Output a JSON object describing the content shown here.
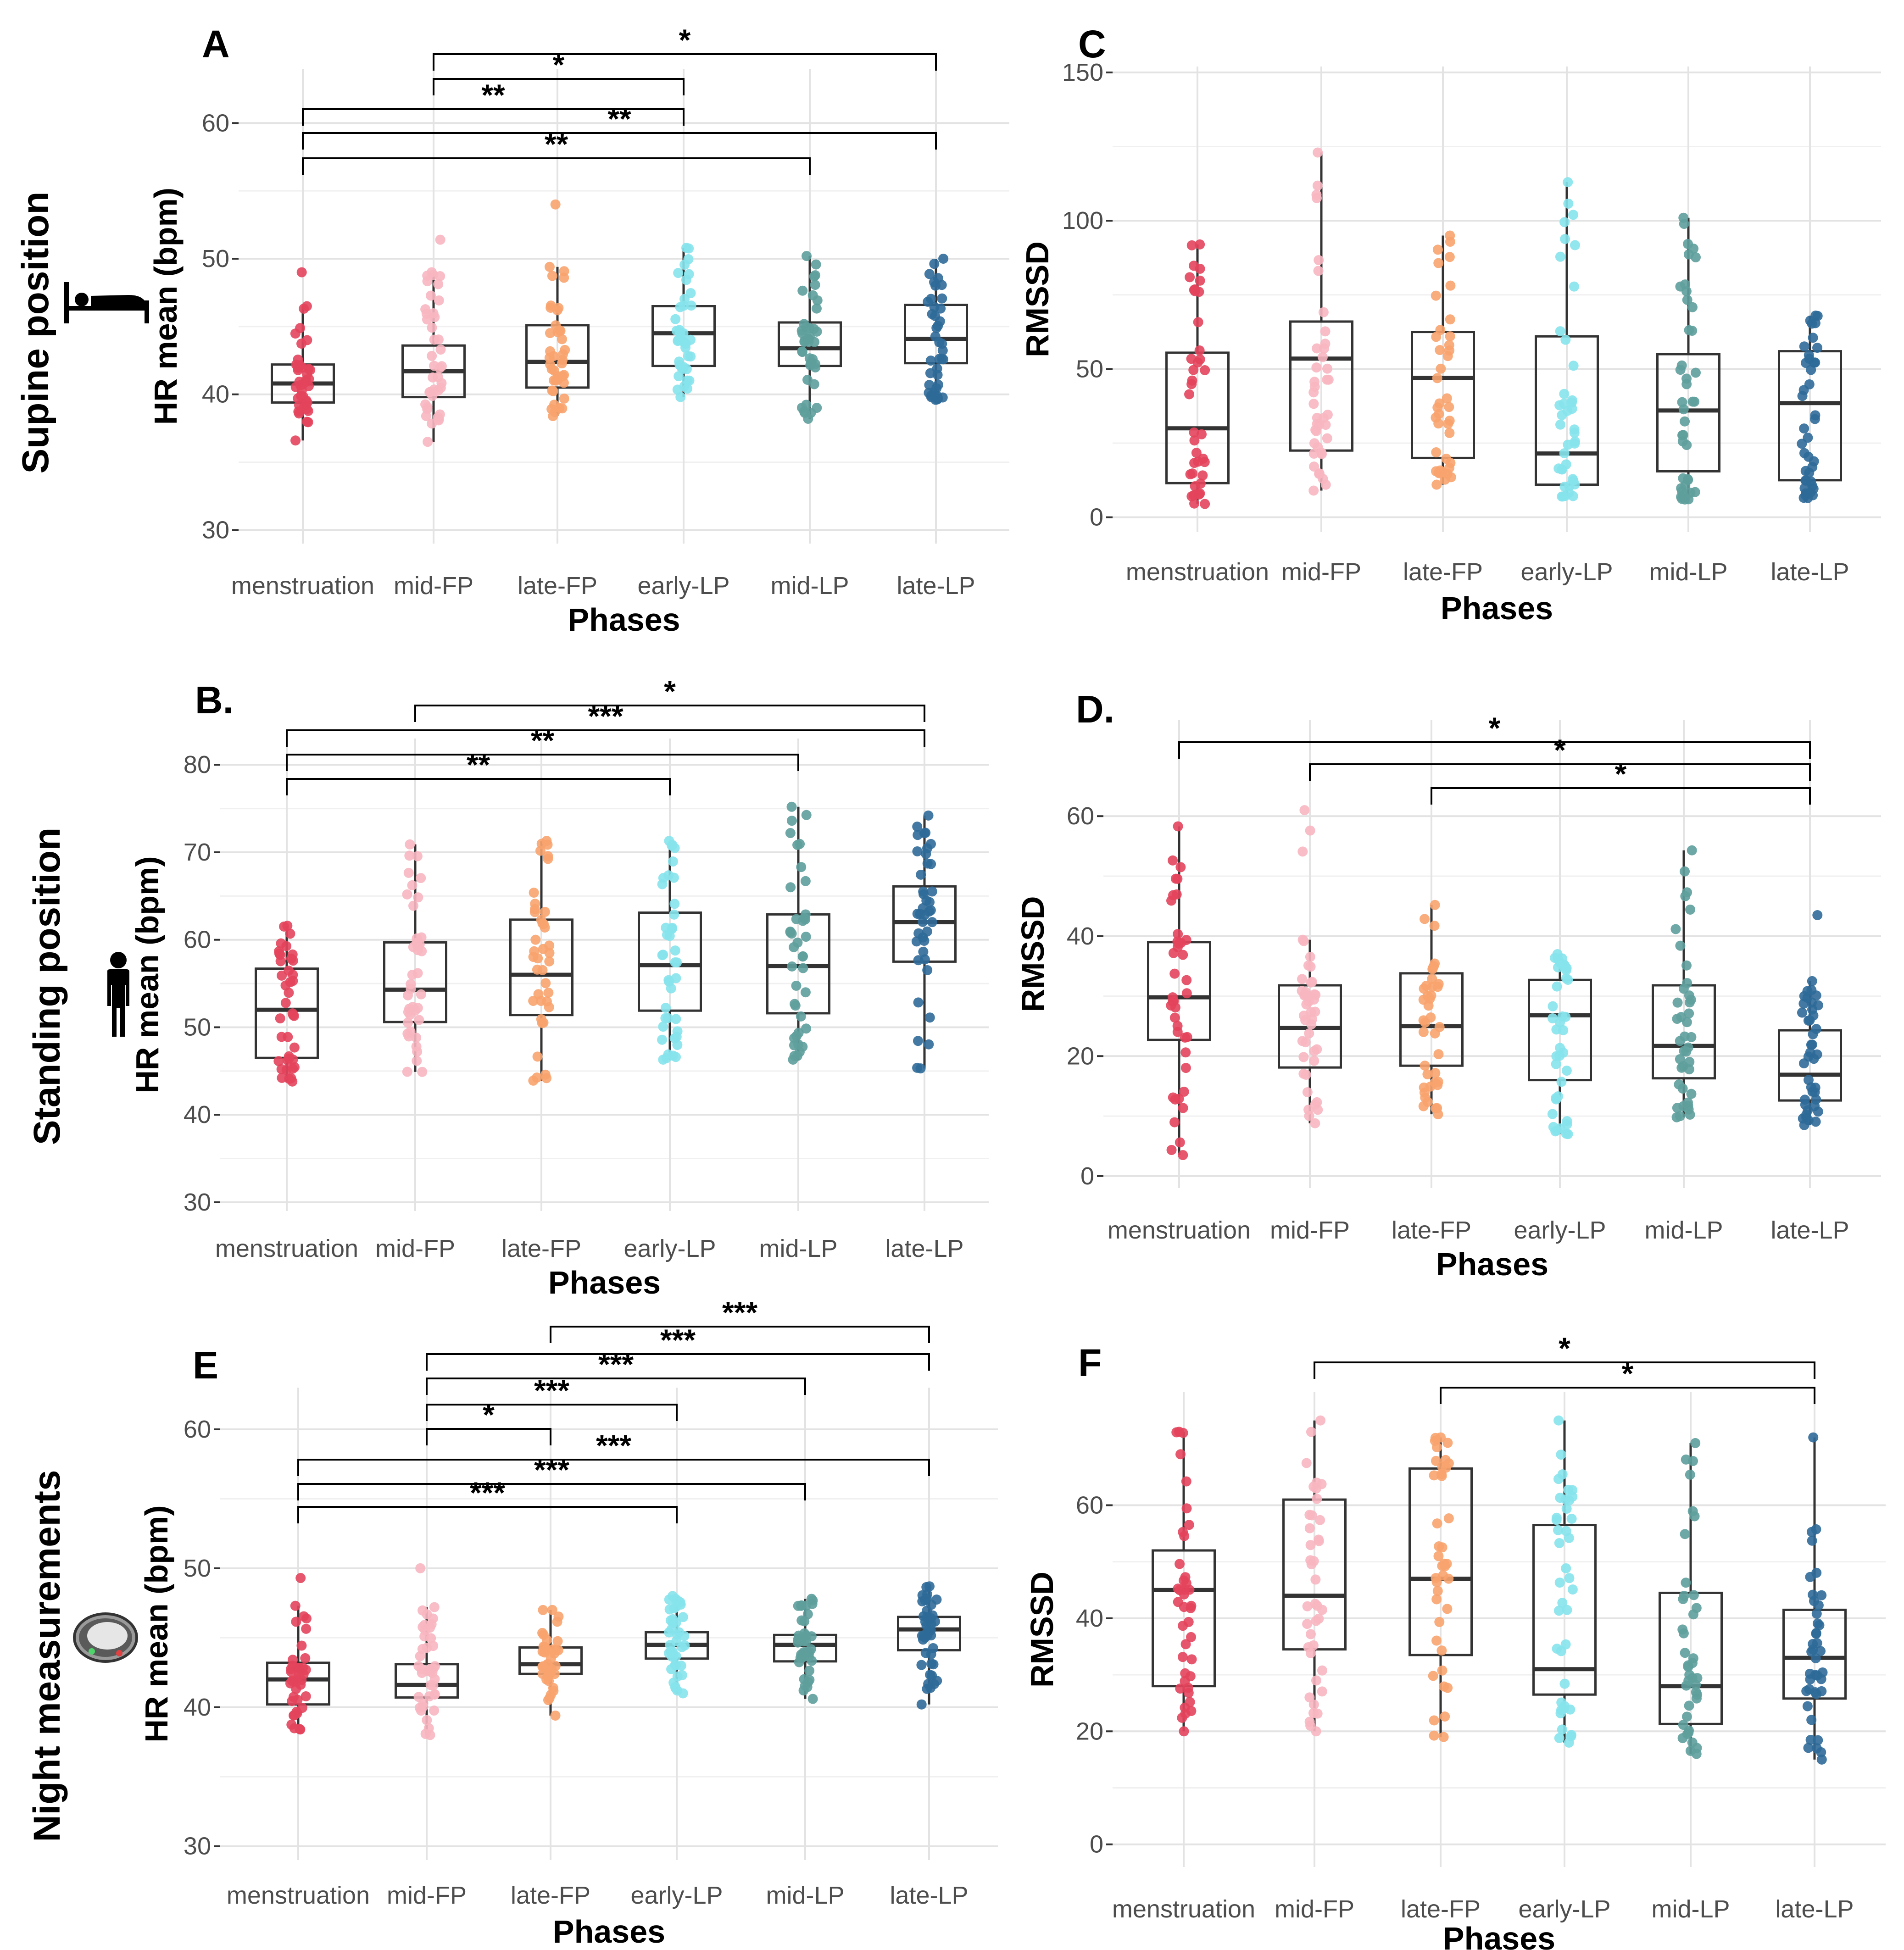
{
  "figure": {
    "row_titles": [
      "Supine position",
      "Standing position",
      "Night measurements"
    ],
    "phases": [
      "menstruation",
      "mid-FP",
      "late-FP",
      "early-LP",
      "mid-LP",
      "late-LP"
    ],
    "phase_colors": [
      "#e3445c",
      "#f7b6c0",
      "#f8a36e",
      "#86e3ec",
      "#5e9e9c",
      "#2f6a98"
    ]
  },
  "chart_data": [
    {
      "id": "A",
      "label": "A",
      "type": "box",
      "row": 0,
      "col": 0,
      "title": "",
      "xlabel": "Phases",
      "ylabel": "HR mean (bpm)",
      "ylim": [
        29,
        64
      ],
      "yticks": [
        30,
        40,
        50,
        60
      ],
      "categories": [
        "menstruation",
        "mid-FP",
        "late-FP",
        "early-LP",
        "mid-LP",
        "late-LP"
      ],
      "boxes": [
        {
          "q1": 39.4,
          "median": 40.8,
          "q3": 42.2,
          "min": 36.6,
          "max": 46.5
        },
        {
          "q1": 39.8,
          "median": 41.7,
          "q3": 43.6,
          "min": 36.5,
          "max": 49.0
        },
        {
          "q1": 40.5,
          "median": 42.4,
          "q3": 45.1,
          "min": 38.4,
          "max": 49.4
        },
        {
          "q1": 42.1,
          "median": 44.5,
          "q3": 46.5,
          "min": 39.8,
          "max": 50.8
        },
        {
          "q1": 42.1,
          "median": 43.4,
          "q3": 45.3,
          "min": 38.2,
          "max": 50.2
        },
        {
          "q1": 42.3,
          "median": 44.1,
          "q3": 46.6,
          "min": 39.6,
          "max": 50.0
        }
      ],
      "outliers": [
        [
          49.0
        ],
        [
          51.4
        ],
        [
          54.0
        ],
        [],
        [],
        []
      ],
      "significance": [
        {
          "from": 1,
          "to": 5,
          "label": "*"
        },
        {
          "from": 1,
          "to": 3,
          "label": "*"
        },
        {
          "from": 0,
          "to": 3,
          "label": "**"
        },
        {
          "from": 0,
          "to": 5,
          "label": "**"
        },
        {
          "from": 0,
          "to": 4,
          "label": "**"
        }
      ]
    },
    {
      "id": "C",
      "label": "C",
      "type": "box",
      "row": 0,
      "col": 1,
      "title": "",
      "xlabel": "Phases",
      "ylabel": "RMSSD",
      "ylim": [
        -5,
        152
      ],
      "yticks": [
        0,
        50,
        100,
        150
      ],
      "categories": [
        "menstruation",
        "mid-FP",
        "late-FP",
        "early-LP",
        "mid-LP",
        "late-LP"
      ],
      "boxes": [
        {
          "q1": 11.5,
          "median": 30.0,
          "q3": 55.5,
          "min": 4.5,
          "max": 92.0
        },
        {
          "q1": 22.5,
          "median": 53.5,
          "q3": 66.0,
          "min": 9.0,
          "max": 123.0
        },
        {
          "q1": 20.0,
          "median": 47.0,
          "q3": 62.5,
          "min": 11.0,
          "max": 95.0
        },
        {
          "q1": 11.0,
          "median": 21.5,
          "q3": 61.0,
          "min": 7.0,
          "max": 113.0
        },
        {
          "q1": 15.5,
          "median": 36.0,
          "q3": 55.0,
          "min": 6.0,
          "max": 101.0
        },
        {
          "q1": 12.5,
          "median": 38.5,
          "q3": 56.0,
          "min": 6.5,
          "max": 68.0
        }
      ],
      "outliers": [
        [],
        [],
        [],
        [],
        [],
        []
      ],
      "significance": []
    },
    {
      "id": "B",
      "label": "B.",
      "type": "box",
      "row": 1,
      "col": 0,
      "title": "",
      "xlabel": "Phases",
      "ylabel": "HR mean (bpm)",
      "ylim": [
        29,
        83
      ],
      "yticks": [
        30,
        40,
        50,
        60,
        70,
        80
      ],
      "categories": [
        "menstruation",
        "mid-FP",
        "late-FP",
        "early-LP",
        "mid-LP",
        "late-LP"
      ],
      "boxes": [
        {
          "q1": 46.5,
          "median": 52.0,
          "q3": 56.7,
          "min": 43.8,
          "max": 61.6
        },
        {
          "q1": 50.6,
          "median": 54.3,
          "q3": 59.7,
          "min": 44.9,
          "max": 70.9
        },
        {
          "q1": 51.4,
          "median": 56.0,
          "q3": 62.3,
          "min": 43.9,
          "max": 71.3
        },
        {
          "q1": 51.9,
          "median": 57.1,
          "q3": 63.1,
          "min": 46.3,
          "max": 71.3
        },
        {
          "q1": 51.6,
          "median": 57.0,
          "q3": 62.9,
          "min": 46.3,
          "max": 75.2
        },
        {
          "q1": 57.5,
          "median": 62.0,
          "q3": 66.1,
          "min": 45.3,
          "max": 74.2
        }
      ],
      "outliers": [
        [],
        [],
        [],
        [],
        [],
        []
      ],
      "significance": [
        {
          "from": 1,
          "to": 5,
          "label": "*"
        },
        {
          "from": 0,
          "to": 5,
          "label": "***"
        },
        {
          "from": 0,
          "to": 4,
          "label": "**"
        },
        {
          "from": 0,
          "to": 3,
          "label": "**"
        }
      ]
    },
    {
      "id": "D",
      "label": "D.",
      "type": "box",
      "row": 1,
      "col": 1,
      "title": "",
      "xlabel": "Phases",
      "ylabel": "RMSSD",
      "ylim": [
        -2,
        76
      ],
      "yticks": [
        0,
        20,
        40,
        60
      ],
      "categories": [
        "menstruation",
        "mid-FP",
        "late-FP",
        "early-LP",
        "mid-LP",
        "late-LP"
      ],
      "boxes": [
        {
          "q1": 22.7,
          "median": 29.8,
          "q3": 39.0,
          "min": 3.5,
          "max": 58.3
        },
        {
          "q1": 18.1,
          "median": 24.7,
          "q3": 31.8,
          "min": 8.8,
          "max": 39.4
        },
        {
          "q1": 18.4,
          "median": 25.0,
          "q3": 33.8,
          "min": 10.3,
          "max": 45.2
        },
        {
          "q1": 16.0,
          "median": 26.8,
          "q3": 32.7,
          "min": 7.0,
          "max": 37.0
        },
        {
          "q1": 16.3,
          "median": 21.7,
          "q3": 31.8,
          "min": 9.8,
          "max": 54.3
        },
        {
          "q1": 12.6,
          "median": 16.9,
          "q3": 24.3,
          "min": 8.5,
          "max": 32.5
        }
      ],
      "outliers": [
        [],
        [
          54.1,
          57.6,
          61.0
        ],
        [],
        [],
        [],
        [
          43.5
        ]
      ],
      "significance": [
        {
          "from": 0,
          "to": 5,
          "label": "*"
        },
        {
          "from": 1,
          "to": 5,
          "label": "*"
        },
        {
          "from": 2,
          "to": 5,
          "label": "*"
        }
      ]
    },
    {
      "id": "E",
      "label": "E",
      "type": "box",
      "row": 2,
      "col": 0,
      "title": "",
      "xlabel": "Phases",
      "ylabel": "HR mean (bpm)",
      "ylim": [
        29,
        63
      ],
      "yticks": [
        30,
        40,
        50,
        60
      ],
      "categories": [
        "menstruation",
        "mid-FP",
        "late-FP",
        "early-LP",
        "mid-LP",
        "late-LP"
      ],
      "boxes": [
        {
          "q1": 40.2,
          "median": 42.0,
          "q3": 43.2,
          "min": 38.4,
          "max": 47.3
        },
        {
          "q1": 40.7,
          "median": 41.6,
          "q3": 43.1,
          "min": 38.0,
          "max": 47.2
        },
        {
          "q1": 42.4,
          "median": 43.1,
          "q3": 44.3,
          "min": 39.4,
          "max": 47.0
        },
        {
          "q1": 43.5,
          "median": 44.5,
          "q3": 45.4,
          "min": 41.0,
          "max": 48.0
        },
        {
          "q1": 43.3,
          "median": 44.5,
          "q3": 45.2,
          "min": 40.6,
          "max": 47.8
        },
        {
          "q1": 44.1,
          "median": 45.6,
          "q3": 46.5,
          "min": 40.2,
          "max": 48.7
        }
      ],
      "outliers": [
        [
          49.3
        ],
        [
          50.0
        ],
        [],
        [],
        [],
        []
      ],
      "significance": [
        {
          "from": 2,
          "to": 5,
          "label": "***"
        },
        {
          "from": 1,
          "to": 5,
          "label": "***"
        },
        {
          "from": 1,
          "to": 4,
          "label": "***"
        },
        {
          "from": 1,
          "to": 3,
          "label": "***"
        },
        {
          "from": 1,
          "to": 2,
          "label": "*"
        },
        {
          "from": 0,
          "to": 5,
          "label": "***"
        },
        {
          "from": 0,
          "to": 4,
          "label": "***"
        },
        {
          "from": 0,
          "to": 3,
          "label": "***"
        }
      ]
    },
    {
      "id": "F",
      "label": "F",
      "type": "box",
      "row": 2,
      "col": 1,
      "title": "",
      "xlabel": "Phases",
      "ylabel": "RMSSD",
      "ylim": [
        -4,
        80
      ],
      "yticks": [
        0,
        20,
        40,
        60
      ],
      "categories": [
        "menstruation",
        "mid-FP",
        "late-FP",
        "early-LP",
        "mid-LP",
        "late-LP"
      ],
      "boxes": [
        {
          "q1": 28.0,
          "median": 45.0,
          "q3": 52.0,
          "min": 20.0,
          "max": 73.0
        },
        {
          "q1": 34.5,
          "median": 44.0,
          "q3": 61.0,
          "min": 20.0,
          "max": 75.0
        },
        {
          "q1": 33.5,
          "median": 47.0,
          "q3": 66.5,
          "min": 19.0,
          "max": 72.0
        },
        {
          "q1": 26.5,
          "median": 31.0,
          "q3": 56.5,
          "min": 18.0,
          "max": 75.0
        },
        {
          "q1": 21.3,
          "median": 28.0,
          "q3": 44.5,
          "min": 16.0,
          "max": 71.0
        },
        {
          "q1": 25.8,
          "median": 33.0,
          "q3": 41.5,
          "min": 15.0,
          "max": 72.0
        }
      ],
      "outliers": [
        [],
        [],
        [],
        [],
        [],
        []
      ],
      "significance": [
        {
          "from": 1,
          "to": 5,
          "label": "*"
        },
        {
          "from": 2,
          "to": 5,
          "label": "*"
        }
      ]
    }
  ]
}
